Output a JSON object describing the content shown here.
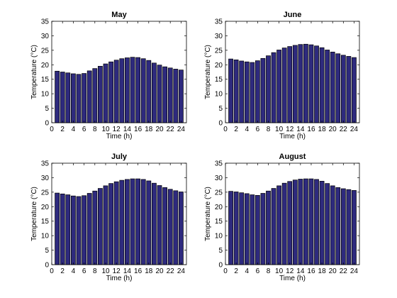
{
  "chart_data": [
    {
      "type": "bar",
      "title": "May",
      "xlabel": "Time (h)",
      "ylabel": "Temperature (°C)",
      "xlim": [
        0,
        25
      ],
      "ylim": [
        0,
        35
      ],
      "xticks": [
        0,
        2,
        4,
        6,
        8,
        10,
        12,
        14,
        16,
        18,
        20,
        22,
        24
      ],
      "yticks": [
        0,
        5,
        10,
        15,
        20,
        25,
        30,
        35
      ],
      "x": [
        1,
        2,
        3,
        4,
        5,
        6,
        7,
        8,
        9,
        10,
        11,
        12,
        13,
        14,
        15,
        16,
        17,
        18,
        19,
        20,
        21,
        22,
        23,
        24
      ],
      "values": [
        17.8,
        17.5,
        17.2,
        16.9,
        16.7,
        17.0,
        17.9,
        18.7,
        19.5,
        20.3,
        21.0,
        21.6,
        22.1,
        22.4,
        22.6,
        22.5,
        22.1,
        21.5,
        20.6,
        19.9,
        19.3,
        18.9,
        18.5,
        18.2
      ],
      "grid": false
    },
    {
      "type": "bar",
      "title": "June",
      "xlabel": "Time (h)",
      "ylabel": "Temperature (°C)",
      "xlim": [
        0,
        25
      ],
      "ylim": [
        0,
        35
      ],
      "xticks": [
        0,
        2,
        4,
        6,
        8,
        10,
        12,
        14,
        16,
        18,
        20,
        22,
        24
      ],
      "yticks": [
        0,
        5,
        10,
        15,
        20,
        25,
        30,
        35
      ],
      "x": [
        1,
        2,
        3,
        4,
        5,
        6,
        7,
        8,
        9,
        10,
        11,
        12,
        13,
        14,
        15,
        16,
        17,
        18,
        19,
        20,
        21,
        22,
        23,
        24
      ],
      "values": [
        22.0,
        21.7,
        21.3,
        21.0,
        20.8,
        21.4,
        22.2,
        23.1,
        24.2,
        25.1,
        25.8,
        26.3,
        26.7,
        27.0,
        27.1,
        26.9,
        26.5,
        25.9,
        25.1,
        24.4,
        23.8,
        23.3,
        22.9,
        22.5
      ],
      "grid": false
    },
    {
      "type": "bar",
      "title": "July",
      "xlabel": "Time (h)",
      "ylabel": "Temperature (°C)",
      "xlim": [
        0,
        25
      ],
      "ylim": [
        0,
        35
      ],
      "xticks": [
        0,
        2,
        4,
        6,
        8,
        10,
        12,
        14,
        16,
        18,
        20,
        22,
        24
      ],
      "yticks": [
        0,
        5,
        10,
        15,
        20,
        25,
        30,
        35
      ],
      "x": [
        1,
        2,
        3,
        4,
        5,
        6,
        7,
        8,
        9,
        10,
        11,
        12,
        13,
        14,
        15,
        16,
        17,
        18,
        19,
        20,
        21,
        22,
        23,
        24
      ],
      "values": [
        24.7,
        24.4,
        24.1,
        23.7,
        23.5,
        23.8,
        24.6,
        25.4,
        26.3,
        27.2,
        28.0,
        28.6,
        29.1,
        29.4,
        29.6,
        29.6,
        29.4,
        28.9,
        28.1,
        27.3,
        26.6,
        26.0,
        25.5,
        25.1
      ],
      "grid": false
    },
    {
      "type": "bar",
      "title": "August",
      "xlabel": "Time (h)",
      "ylabel": "Temperature (°C)",
      "xlim": [
        0,
        25
      ],
      "ylim": [
        0,
        35
      ],
      "xticks": [
        0,
        2,
        4,
        6,
        8,
        10,
        12,
        14,
        16,
        18,
        20,
        22,
        24
      ],
      "yticks": [
        0,
        5,
        10,
        15,
        20,
        25,
        30,
        35
      ],
      "x": [
        1,
        2,
        3,
        4,
        5,
        6,
        7,
        8,
        9,
        10,
        11,
        12,
        13,
        14,
        15,
        16,
        17,
        18,
        19,
        20,
        21,
        22,
        23,
        24
      ],
      "values": [
        25.3,
        25.1,
        24.8,
        24.5,
        24.1,
        23.9,
        24.6,
        25.4,
        26.3,
        27.2,
        28.1,
        28.7,
        29.2,
        29.5,
        29.6,
        29.6,
        29.4,
        28.8,
        28.0,
        27.2,
        26.6,
        26.2,
        25.9,
        25.6
      ],
      "grid": false
    }
  ],
  "style": {
    "bar_color": "#2e2a7e",
    "edge_color": "#000000"
  }
}
